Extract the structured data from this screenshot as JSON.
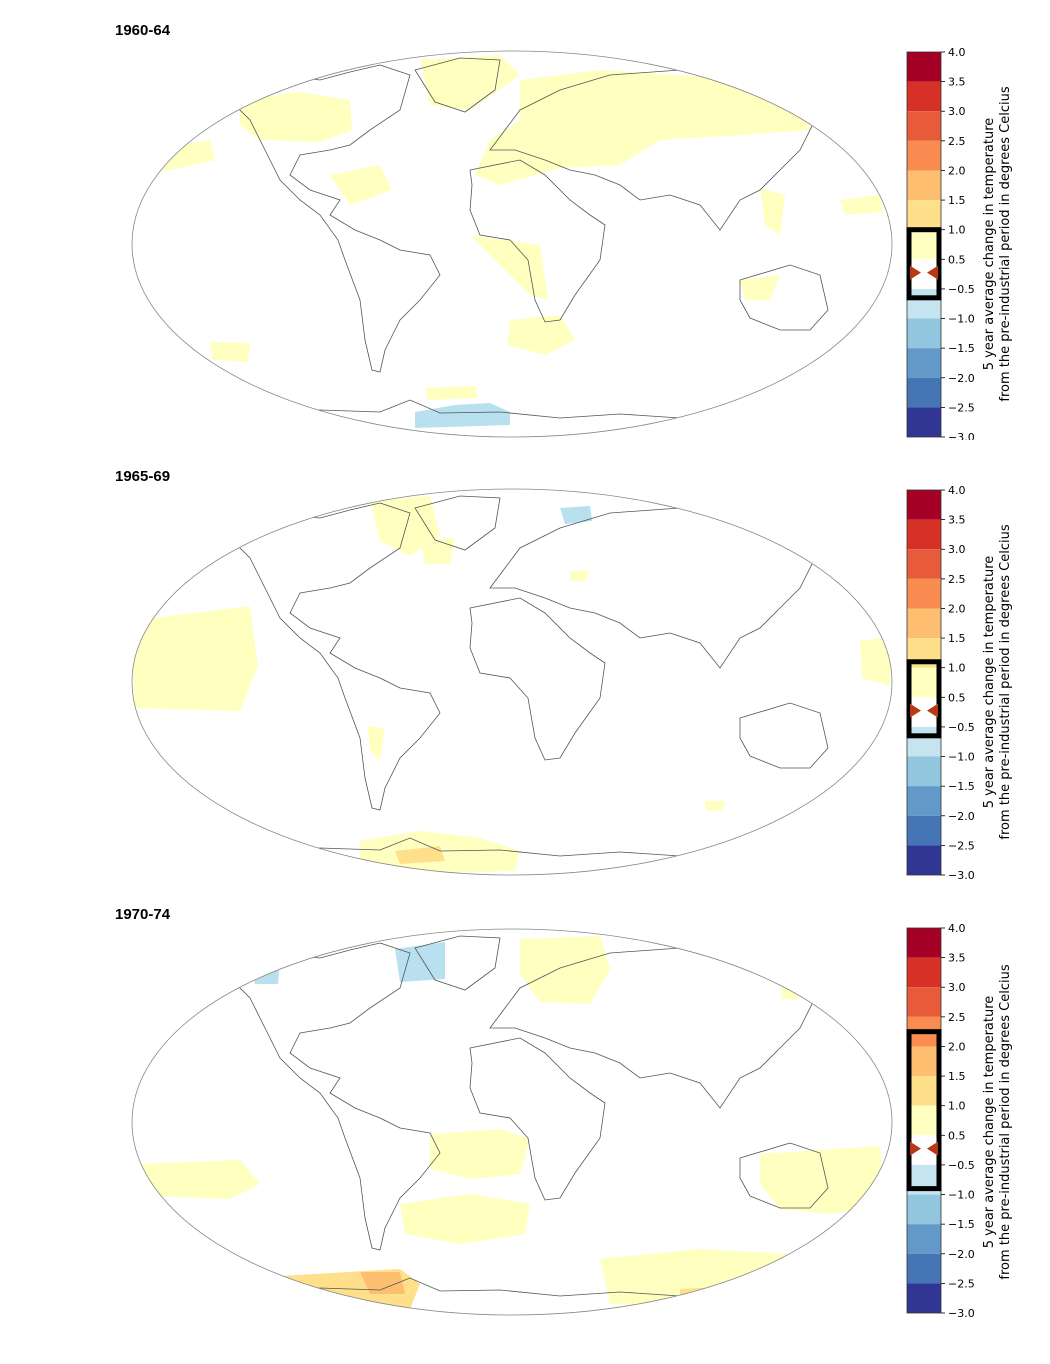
{
  "colorbar": {
    "label_line1": "5 year average change in temperature",
    "label_line2": "from the pre-industrial period in degrees Celcius",
    "ticks": [
      "4.0",
      "3.5",
      "3.0",
      "2.5",
      "2.0",
      "1.5",
      "1.0",
      "0.5",
      "-0.5",
      "-1.0",
      "-1.5",
      "-2.0",
      "-2.5",
      "-3.0"
    ],
    "bands": [
      {
        "from": 3.5,
        "to": 4.0,
        "color": "#a50026"
      },
      {
        "from": 3.0,
        "to": 3.5,
        "color": "#d73027"
      },
      {
        "from": 2.5,
        "to": 3.0,
        "color": "#e85b3a"
      },
      {
        "from": 2.0,
        "to": 2.5,
        "color": "#f88c51"
      },
      {
        "from": 1.5,
        "to": 2.0,
        "color": "#fdbe70"
      },
      {
        "from": 1.0,
        "to": 1.5,
        "color": "#fee08b"
      },
      {
        "from": 0.5,
        "to": 1.0,
        "color": "#ffffbf"
      },
      {
        "from": -0.5,
        "to": 0.5,
        "color": "#ffffff"
      },
      {
        "from": -1.0,
        "to": -0.5,
        "color": "#c6e4ef"
      },
      {
        "from": -1.5,
        "to": -1.0,
        "color": "#92c5de"
      },
      {
        "from": -2.0,
        "to": -1.5,
        "color": "#6399c8"
      },
      {
        "from": -2.5,
        "to": -2.0,
        "color": "#4575b4"
      },
      {
        "from": -3.0,
        "to": -2.5,
        "color": "#313695"
      }
    ]
  },
  "panels": [
    {
      "title": "1960-64",
      "highlight_range": [
        -0.65,
        1.0
      ]
    },
    {
      "title": "1965-69",
      "highlight_range": [
        -0.65,
        1.1
      ]
    },
    {
      "title": "1970-74",
      "highlight_range": [
        -0.9,
        2.25
      ]
    }
  ]
}
